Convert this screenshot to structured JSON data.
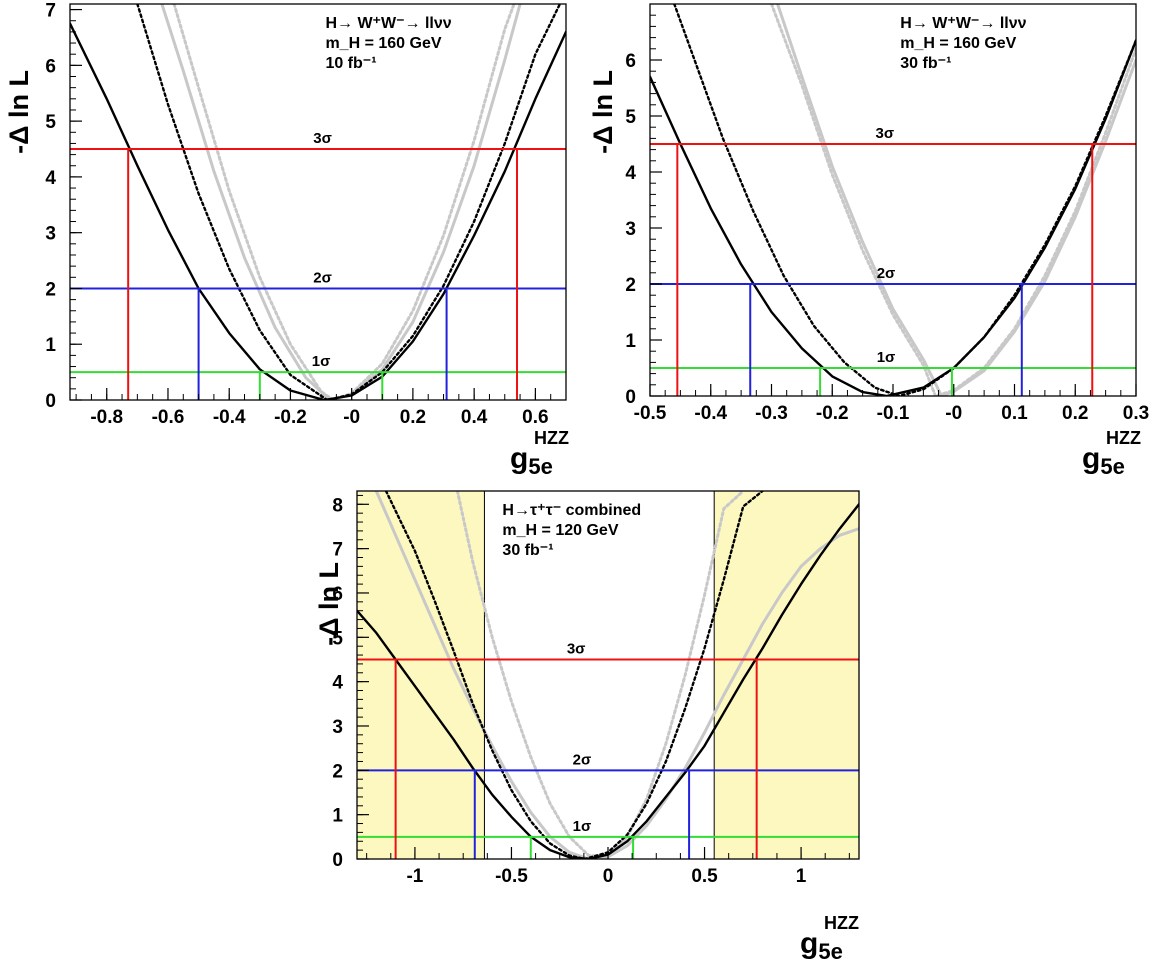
{
  "chart_data": [
    {
      "type": "line",
      "info": [
        "H→ W⁺W⁻→ llνν",
        "m_H = 160 GeV",
        "10 fb⁻¹"
      ],
      "xlabel": "g5e",
      "xlabel_sup": "HZZ",
      "ylabel": "-Δ ln L",
      "xlim": [
        -0.92,
        0.7
      ],
      "ylim": [
        0,
        7.1
      ],
      "xticks": [
        "-0.8",
        "-0.6",
        "-0.4",
        "-0.2",
        "-0",
        "0.2",
        "0.4",
        "0.6"
      ],
      "xtick_values": [
        -0.8,
        -0.6,
        -0.4,
        -0.2,
        0,
        0.2,
        0.4,
        0.6
      ],
      "yticks": [
        "0",
        "1",
        "2",
        "3",
        "4",
        "5",
        "6",
        "7"
      ],
      "yband_note": "",
      "levels": [
        {
          "label": "1σ",
          "y": 0.5,
          "color": "#33dd33",
          "xmin": -0.3,
          "xmax": 0.1
        },
        {
          "label": "2σ",
          "y": 2.0,
          "color": "#2222dd",
          "xmin": -0.5,
          "xmax": 0.31
        },
        {
          "label": "3σ",
          "y": 4.5,
          "color": "#ee1111",
          "xmin": -0.73,
          "xmax": 0.54
        }
      ],
      "series": [
        {
          "style": "solid-black",
          "x": [
            -0.92,
            -0.8,
            -0.7,
            -0.6,
            -0.5,
            -0.4,
            -0.3,
            -0.2,
            -0.09,
            0.0,
            0.1,
            0.2,
            0.3,
            0.4,
            0.5,
            0.6,
            0.7
          ],
          "y": [
            6.75,
            5.4,
            4.2,
            3.05,
            2.0,
            1.2,
            0.55,
            0.17,
            0.0,
            0.08,
            0.42,
            1.05,
            1.9,
            2.95,
            4.1,
            5.4,
            6.6
          ]
        },
        {
          "style": "dotted-black",
          "x": [
            -0.7,
            -0.6,
            -0.5,
            -0.4,
            -0.3,
            -0.2,
            -0.08,
            0.0,
            0.1,
            0.2,
            0.3,
            0.4,
            0.5,
            0.6,
            0.68
          ],
          "y": [
            7.1,
            5.3,
            3.7,
            2.35,
            1.25,
            0.45,
            0.0,
            0.1,
            0.5,
            1.15,
            2.05,
            3.2,
            4.6,
            6.2,
            7.1
          ]
        },
        {
          "style": "solid-gray",
          "x": [
            -0.62,
            -0.55,
            -0.45,
            -0.35,
            -0.25,
            -0.15,
            -0.07,
            0.0,
            0.1,
            0.2,
            0.3,
            0.4,
            0.5,
            0.55
          ],
          "y": [
            7.1,
            5.9,
            4.1,
            2.55,
            1.3,
            0.4,
            0.0,
            0.1,
            0.55,
            1.4,
            2.65,
            4.2,
            6.1,
            7.1
          ]
        },
        {
          "style": "dotted-gray",
          "x": [
            -0.58,
            -0.5,
            -0.4,
            -0.3,
            -0.2,
            -0.1,
            -0.06,
            0.0,
            0.1,
            0.2,
            0.3,
            0.4,
            0.5,
            0.53
          ],
          "y": [
            7.1,
            5.6,
            3.75,
            2.2,
            1.0,
            0.15,
            0.0,
            0.12,
            0.65,
            1.6,
            2.95,
            4.65,
            6.65,
            7.1
          ]
        }
      ]
    },
    {
      "type": "line",
      "info": [
        "H→ W⁺W⁻→ llνν",
        "m_H = 160 GeV",
        "30 fb⁻¹"
      ],
      "xlabel": "g5e",
      "xlabel_sup": "HZZ",
      "ylabel": "-Δ ln L",
      "xlim": [
        -0.5,
        0.3
      ],
      "ylim": [
        0,
        7.0
      ],
      "xticks": [
        "-0.5",
        "-0.4",
        "-0.3",
        "-0.2",
        "-0.1",
        "-0",
        "0.1",
        "0.2",
        "0.3"
      ],
      "xtick_values": [
        -0.5,
        -0.4,
        -0.3,
        -0.2,
        -0.1,
        0,
        0.1,
        0.2,
        0.3
      ],
      "yticks": [
        "0",
        "1",
        "2",
        "3",
        "4",
        "5",
        "6"
      ],
      "levels": [
        {
          "label": "1σ",
          "y": 0.5,
          "color": "#33dd33",
          "xmin": -0.22,
          "xmax": -0.003
        },
        {
          "label": "2σ",
          "y": 2.0,
          "color": "#2222dd",
          "xmin": -0.335,
          "xmax": 0.112
        },
        {
          "label": "3σ",
          "y": 4.5,
          "color": "#ee1111",
          "xmin": -0.455,
          "xmax": 0.228
        }
      ],
      "series": [
        {
          "style": "solid-black",
          "x": [
            -0.5,
            -0.45,
            -0.4,
            -0.35,
            -0.3,
            -0.25,
            -0.2,
            -0.15,
            -0.11,
            -0.05,
            0.0,
            0.05,
            0.1,
            0.15,
            0.2,
            0.25,
            0.3
          ],
          "y": [
            5.7,
            4.5,
            3.35,
            2.35,
            1.5,
            0.85,
            0.35,
            0.07,
            0.0,
            0.15,
            0.5,
            1.05,
            1.75,
            2.65,
            3.7,
            4.95,
            6.35
          ]
        },
        {
          "style": "dotted-black",
          "x": [
            -0.46,
            -0.42,
            -0.38,
            -0.33,
            -0.28,
            -0.23,
            -0.18,
            -0.13,
            -0.09,
            -0.05,
            0.0,
            0.05,
            0.1,
            0.15,
            0.2,
            0.25,
            0.3
          ],
          "y": [
            7.0,
            5.8,
            4.6,
            3.3,
            2.15,
            1.25,
            0.6,
            0.15,
            0.0,
            0.12,
            0.5,
            1.05,
            1.8,
            2.7,
            3.75,
            5.0,
            6.35
          ]
        },
        {
          "style": "solid-gray",
          "x": [
            -0.29,
            -0.25,
            -0.2,
            -0.15,
            -0.1,
            -0.05,
            -0.02,
            0.0,
            0.05,
            0.1,
            0.15,
            0.2,
            0.25,
            0.3
          ],
          "y": [
            7.0,
            5.7,
            4.1,
            2.75,
            1.55,
            0.65,
            0.0,
            0.08,
            0.45,
            1.15,
            2.05,
            3.2,
            4.55,
            6.0
          ]
        },
        {
          "style": "dotted-gray",
          "x": [
            -0.3,
            -0.25,
            -0.2,
            -0.15,
            -0.1,
            -0.05,
            -0.03,
            0.0,
            0.05,
            0.1,
            0.15,
            0.2,
            0.25,
            0.3
          ],
          "y": [
            7.0,
            5.55,
            3.95,
            2.6,
            1.45,
            0.55,
            0.0,
            0.1,
            0.5,
            1.2,
            2.15,
            3.3,
            4.7,
            6.2
          ]
        }
      ]
    },
    {
      "type": "line",
      "info": [
        "H→τ⁺τ⁻ combined",
        "m_H = 120 GeV",
        "30 fb⁻¹"
      ],
      "xlabel": "g5e",
      "xlabel_sup": "HZZ",
      "ylabel": "-Δ ln L",
      "xlim": [
        -1.3,
        1.3
      ],
      "ylim": [
        0,
        8.3
      ],
      "xticks": [
        "-1",
        "-0.5",
        "0",
        "0.5",
        "1"
      ],
      "xtick_values": [
        -1,
        -0.5,
        0,
        0.5,
        1
      ],
      "yticks": [
        "0",
        "1",
        "2",
        "3",
        "4",
        "5",
        "6",
        "7",
        "8"
      ],
      "bands": [
        [
          -1.3,
          -0.64
        ],
        [
          0.55,
          1.3
        ]
      ],
      "levels": [
        {
          "label": "1σ",
          "y": 0.5,
          "color": "#33dd33",
          "xmin": -0.4,
          "xmax": 0.13
        },
        {
          "label": "2σ",
          "y": 2.0,
          "color": "#2222dd",
          "xmin": -0.69,
          "xmax": 0.42
        },
        {
          "label": "3σ",
          "y": 4.5,
          "color": "#ee1111",
          "xmin": -1.1,
          "xmax": 0.77
        }
      ],
      "series": [
        {
          "style": "solid-black",
          "x": [
            -1.3,
            -1.2,
            -1.1,
            -1.0,
            -0.9,
            -0.8,
            -0.7,
            -0.6,
            -0.5,
            -0.4,
            -0.3,
            -0.2,
            -0.1,
            0.0,
            0.1,
            0.2,
            0.3,
            0.4,
            0.5,
            0.6,
            0.7,
            0.8,
            0.9,
            1.0,
            1.1,
            1.2,
            1.3
          ],
          "y": [
            5.6,
            5.1,
            4.5,
            3.9,
            3.3,
            2.7,
            2.05,
            1.45,
            0.95,
            0.5,
            0.2,
            0.04,
            0.0,
            0.1,
            0.4,
            0.85,
            1.4,
            1.95,
            2.55,
            3.3,
            4.05,
            4.75,
            5.5,
            6.2,
            6.85,
            7.45,
            8.0
          ]
        },
        {
          "style": "dotted-black",
          "x": [
            -1.15,
            -1.0,
            -0.9,
            -0.8,
            -0.7,
            -0.6,
            -0.5,
            -0.4,
            -0.3,
            -0.2,
            -0.12,
            0.0,
            0.1,
            0.2,
            0.3,
            0.4,
            0.5,
            0.6,
            0.7,
            0.8
          ],
          "y": [
            8.3,
            6.95,
            5.85,
            4.7,
            3.5,
            2.45,
            1.55,
            0.85,
            0.35,
            0.08,
            0.0,
            0.15,
            0.55,
            1.25,
            2.2,
            3.4,
            4.75,
            6.3,
            7.95,
            8.3
          ]
        },
        {
          "style": "solid-gray",
          "x": [
            -1.2,
            -1.1,
            -1.0,
            -0.9,
            -0.8,
            -0.7,
            -0.6,
            -0.5,
            -0.4,
            -0.3,
            -0.2,
            -0.1,
            0.0,
            0.1,
            0.2,
            0.3,
            0.4,
            0.5,
            0.6,
            0.7,
            0.8,
            0.9,
            1.0,
            1.1,
            1.2,
            1.3
          ],
          "y": [
            8.3,
            7.3,
            6.3,
            5.3,
            4.3,
            3.4,
            2.55,
            1.75,
            1.05,
            0.5,
            0.15,
            0.0,
            0.05,
            0.3,
            0.75,
            1.35,
            2.05,
            2.85,
            3.7,
            4.5,
            5.3,
            6.0,
            6.6,
            7.0,
            7.3,
            7.45
          ]
        },
        {
          "style": "dotted-gray",
          "x": [
            -0.78,
            -0.7,
            -0.6,
            -0.5,
            -0.4,
            -0.3,
            -0.2,
            -0.1,
            0.0,
            0.1,
            0.2,
            0.3,
            0.4,
            0.5,
            0.6,
            0.7
          ],
          "y": [
            8.3,
            6.7,
            5.0,
            3.55,
            2.3,
            1.25,
            0.5,
            0.08,
            0.05,
            0.5,
            1.35,
            2.6,
            4.15,
            5.95,
            7.9,
            8.3
          ]
        }
      ]
    }
  ]
}
